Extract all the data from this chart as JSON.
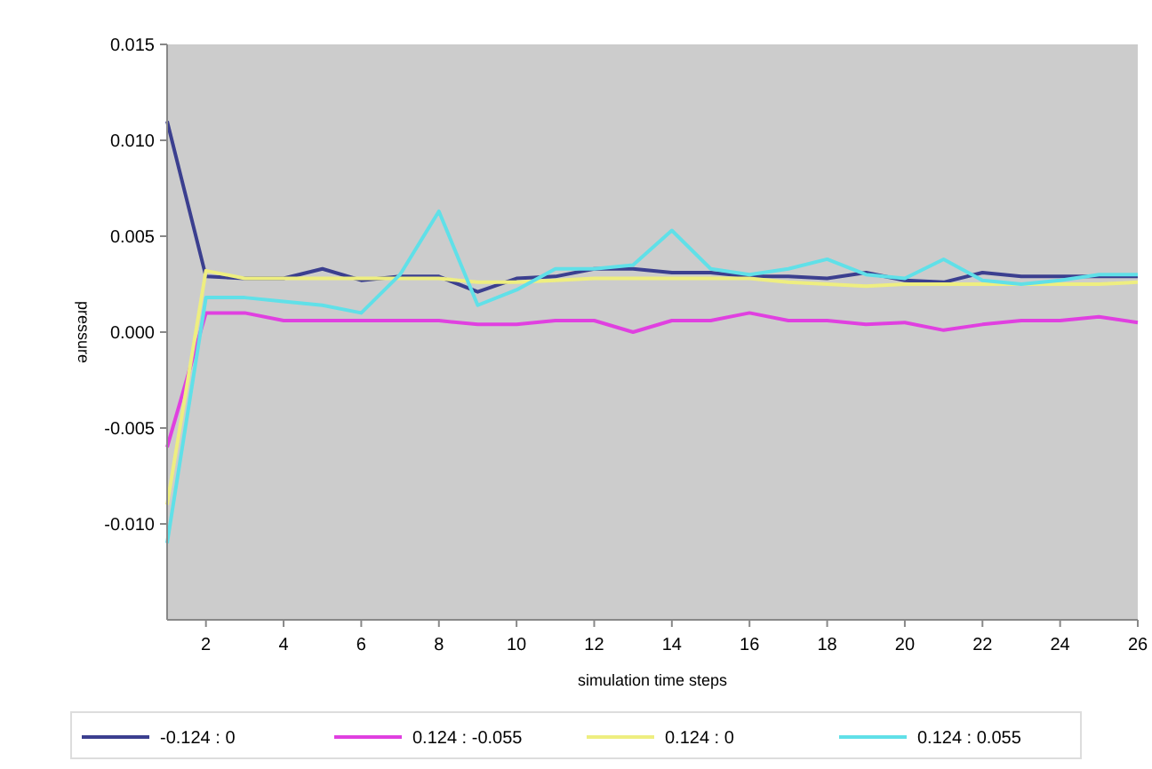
{
  "chart_data": {
    "type": "line",
    "xlabel": "simulation time steps",
    "ylabel": "pressure",
    "x": [
      1,
      2,
      3,
      4,
      5,
      6,
      7,
      8,
      9,
      10,
      11,
      12,
      13,
      14,
      15,
      16,
      17,
      18,
      19,
      20,
      21,
      22,
      23,
      24,
      25,
      26
    ],
    "xlim": [
      1,
      26
    ],
    "xticks": [
      2,
      4,
      6,
      8,
      10,
      12,
      14,
      16,
      18,
      20,
      22,
      24,
      26
    ],
    "ylim": [
      -0.015,
      0.015
    ],
    "yticks": [
      {
        "value": 0.015,
        "label": "0.015"
      },
      {
        "value": 0.01,
        "label": "0.010"
      },
      {
        "value": 0.005,
        "label": "0.005"
      },
      {
        "value": 0,
        "label": "0.000"
      },
      {
        "value": -0.005,
        "label": "-0.005"
      },
      {
        "value": -0.01,
        "label": "-0.010"
      }
    ],
    "grid": false,
    "legend": "bottom",
    "marker": "none",
    "line_style": "solid",
    "series": [
      {
        "name": "-0.124 : 0",
        "color": "#3b3f8f",
        "values": [
          0.011,
          0.0029,
          0.0028,
          0.0028,
          0.0033,
          0.0027,
          0.0029,
          0.0029,
          0.0021,
          0.0028,
          0.0029,
          0.0033,
          0.0033,
          0.0031,
          0.0031,
          0.0029,
          0.0029,
          0.0028,
          0.0031,
          0.0027,
          0.0026,
          0.0031,
          0.0029,
          0.0029,
          0.0029,
          0.0029
        ]
      },
      {
        "name": "0.124 : -0.055",
        "color": "#e040e0",
        "values": [
          -0.006,
          0.001,
          0.001,
          0.0006,
          0.0006,
          0.0006,
          0.0006,
          0.0006,
          0.0004,
          0.0004,
          0.0006,
          0.0006,
          0.0,
          0.0006,
          0.0006,
          0.001,
          0.0006,
          0.0006,
          0.0004,
          0.0005,
          0.0001,
          0.0004,
          0.0006,
          0.0006,
          0.0008,
          0.0005
        ]
      },
      {
        "name": "0.124 : 0",
        "color": "#eeee80",
        "values": [
          -0.009,
          0.0032,
          0.0028,
          0.0028,
          0.0028,
          0.0028,
          0.0028,
          0.0028,
          0.0026,
          0.0026,
          0.0027,
          0.0028,
          0.0028,
          0.0028,
          0.0028,
          0.0028,
          0.0026,
          0.0025,
          0.0024,
          0.0025,
          0.0025,
          0.0025,
          0.0025,
          0.0025,
          0.0025,
          0.0026
        ]
      },
      {
        "name": "0.124 : 0.055",
        "color": "#60e0e8",
        "values": [
          -0.011,
          0.0018,
          0.0018,
          0.0016,
          0.0014,
          0.001,
          0.003,
          0.0063,
          0.0014,
          0.0022,
          0.0033,
          0.0033,
          0.0035,
          0.0053,
          0.0033,
          0.003,
          0.0033,
          0.0038,
          0.003,
          0.0028,
          0.0038,
          0.0027,
          0.0025,
          0.0027,
          0.003,
          0.003
        ]
      }
    ]
  }
}
